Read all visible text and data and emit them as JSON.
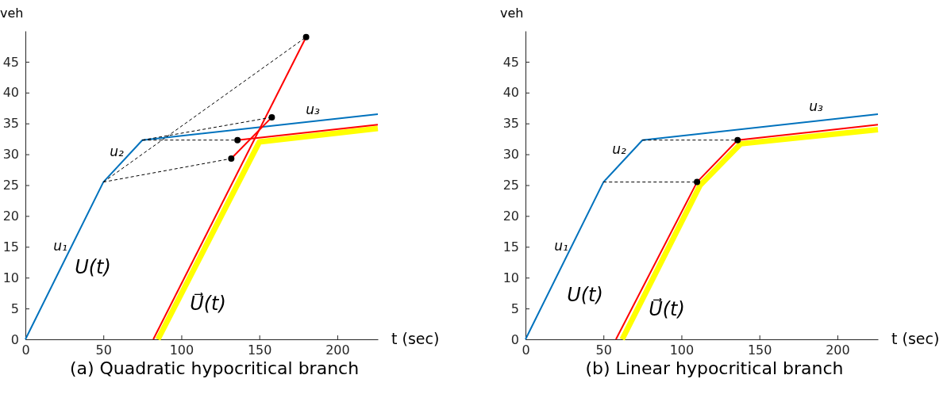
{
  "chart_data": [
    {
      "type": "line",
      "title": "(a) Quadratic hypocritical branch",
      "xlabel": "t (sec)",
      "ylabel": "veh",
      "xlim": [
        0,
        226
      ],
      "ylim": [
        0,
        50
      ],
      "xticks": [
        0,
        50,
        100,
        150,
        200
      ],
      "yticks": [
        0,
        5,
        10,
        15,
        20,
        25,
        30,
        35,
        40,
        45
      ],
      "grid": false,
      "series": [
        {
          "color": "#ffff00",
          "x": [
            85,
            150,
            226
          ],
          "values": [
            0,
            32,
            34.2
          ]
        },
        {
          "color": "#0072bd",
          "x": [
            0,
            50,
            75,
            226
          ],
          "values": [
            0,
            25.5,
            32.3,
            36.5
          ]
        },
        {
          "color": "#ff0000",
          "x": [
            82,
            180
          ],
          "values": [
            0,
            49
          ]
        },
        {
          "color": "#ff0000",
          "x": [
            132,
            158
          ],
          "values": [
            29.3,
            36
          ]
        },
        {
          "color": "#ff0000",
          "x": [
            136,
            226
          ],
          "values": [
            32.3,
            34.8
          ]
        },
        {
          "color": "#000000",
          "line_style": "dashed",
          "x": [
            50,
            132
          ],
          "values": [
            25.5,
            29.3
          ]
        },
        {
          "color": "#000000",
          "line_style": "dashed",
          "x": [
            50,
            180
          ],
          "values": [
            25.5,
            49
          ]
        },
        {
          "color": "#000000",
          "line_style": "dashed",
          "x": [
            75,
            136
          ],
          "values": [
            32.3,
            32.3
          ]
        },
        {
          "color": "#000000",
          "line_style": "dashed",
          "x": [
            75,
            158
          ],
          "values": [
            32.3,
            36
          ]
        },
        {
          "type": "scatter",
          "marker": "circle",
          "color": "#000000",
          "x": [
            132,
            136,
            158,
            180
          ],
          "values": [
            29.3,
            32.3,
            36,
            49
          ]
        }
      ],
      "annotations": [
        "u₁",
        "u₂",
        "u₃",
        "U(t)",
        "U⃗(t)"
      ]
    },
    {
      "type": "line",
      "title": "(b) Linear hypocritical branch",
      "xlabel": "t (sec)",
      "ylabel": "veh",
      "xlim": [
        0,
        226
      ],
      "ylim": [
        0,
        50
      ],
      "xticks": [
        0,
        50,
        100,
        150,
        200
      ],
      "yticks": [
        0,
        5,
        10,
        15,
        20,
        25,
        30,
        35,
        40,
        45
      ],
      "grid": false,
      "series": [
        {
          "color": "#ffff00",
          "x": [
            62,
            112,
            138,
            226
          ],
          "values": [
            0,
            25,
            31.7,
            34
          ]
        },
        {
          "color": "#0072bd",
          "x": [
            0,
            50,
            75,
            226
          ],
          "values": [
            0,
            25.5,
            32.3,
            36.5
          ]
        },
        {
          "color": "#ff0000",
          "x": [
            58,
            110,
            136,
            226
          ],
          "values": [
            0,
            25.5,
            32.3,
            34.8
          ]
        },
        {
          "color": "#000000",
          "line_style": "dashed",
          "x": [
            50,
            110
          ],
          "values": [
            25.5,
            25.5
          ]
        },
        {
          "color": "#000000",
          "line_style": "dashed",
          "x": [
            75,
            136
          ],
          "values": [
            32.3,
            32.3
          ]
        },
        {
          "type": "scatter",
          "marker": "circle",
          "color": "#000000",
          "x": [
            110,
            136
          ],
          "values": [
            25.5,
            32.3
          ]
        }
      ],
      "annotations": [
        "u₁",
        "u₂",
        "u₃",
        "U(t)",
        "U⃗(t)"
      ]
    }
  ]
}
